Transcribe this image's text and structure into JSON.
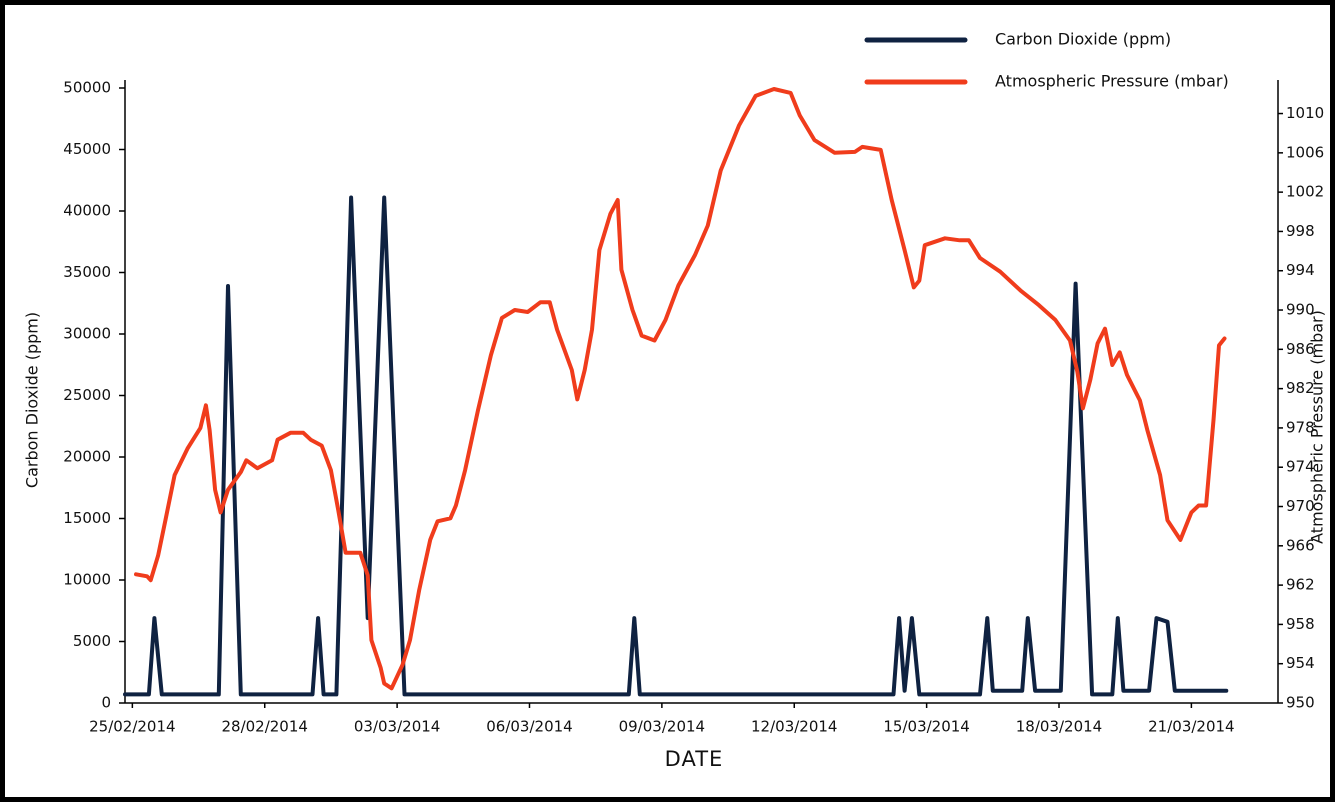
{
  "chart_data": {
    "type": "line",
    "x_label": "DATE",
    "y_label": "Carbon Dioxide (ppm)",
    "y2_label": "Atmospheric Pressure (mbar)",
    "legend": "top-right",
    "grid": false,
    "xlim": [
      "2014-02-24 20:00",
      "2014-03-21 21:00"
    ],
    "xticks": [
      {
        "value": "2014-02-25 00:00",
        "label": "25/02/2014"
      },
      {
        "value": "2014-02-28 00:00",
        "label": "28/02/2014"
      },
      {
        "value": "2014-03-03 00:00",
        "label": "03/03/2014"
      },
      {
        "value": "2014-03-06 00:00",
        "label": "06/03/2014"
      },
      {
        "value": "2014-03-09 00:00",
        "label": "09/03/2014"
      },
      {
        "value": "2014-03-12 00:00",
        "label": "12/03/2014"
      },
      {
        "value": "2014-03-15 00:00",
        "label": "15/03/2014"
      },
      {
        "value": "2014-03-18 00:00",
        "label": "18/03/2014"
      },
      {
        "value": "2014-03-21 00:00",
        "label": "21/03/2014"
      }
    ],
    "ylim": [
      0,
      50000
    ],
    "yticks": [
      0,
      5000,
      10000,
      15000,
      20000,
      25000,
      30000,
      35000,
      40000,
      45000,
      50000
    ],
    "y2lim": [
      950,
      1012.6
    ],
    "y2ticks": [
      950,
      954,
      958,
      962,
      966,
      970,
      974,
      978,
      982,
      986,
      990,
      994,
      998,
      1002,
      1006,
      1010
    ],
    "series": [
      {
        "name": "Carbon Dioxide (ppm)",
        "color": "#0f2241",
        "x": [
          "2014-02-24 20:00",
          "2014-02-25 09:00",
          "2014-02-25 12:00",
          "2014-02-25 16:00",
          "2014-02-26 23:00",
          "2014-02-27 04:00",
          "2014-02-27 11:00",
          "2014-03-01 02:00",
          "2014-03-01 05:00",
          "2014-03-01 08:00",
          "2014-03-01 15:00",
          "2014-03-01 23:00",
          "2014-03-02 08:00",
          "2014-03-02 17:00",
          "2014-03-03 04:00",
          "2014-03-08 06:00",
          "2014-03-08 09:00",
          "2014-03-08 12:00",
          "2014-03-14 06:00",
          "2014-03-14 09:00",
          "2014-03-14 12:00",
          "2014-03-14 16:00",
          "2014-03-14 20:00",
          "2014-03-16 05:00",
          "2014-03-16 09:00",
          "2014-03-16 12:00",
          "2014-03-17 04:00",
          "2014-03-17 07:00",
          "2014-03-17 11:00",
          "2014-03-18 01:00",
          "2014-03-18 09:00",
          "2014-03-18 18:00",
          "2014-03-19 05:00",
          "2014-03-19 08:00",
          "2014-03-19 11:00",
          "2014-03-20 01:00",
          "2014-03-20 05:00",
          "2014-03-20 11:00",
          "2014-03-20 15:00",
          "2014-03-21 19:00"
        ],
        "values": [
          700,
          700,
          6900,
          700,
          700,
          33900,
          700,
          700,
          6900,
          700,
          700,
          41100,
          6900,
          41100,
          700,
          700,
          6900,
          700,
          700,
          6900,
          1000,
          6900,
          700,
          700,
          6900,
          1000,
          1000,
          6900,
          1000,
          1000,
          34100,
          700,
          700,
          6900,
          1000,
          1000,
          6900,
          6600,
          1000,
          1000
        ]
      },
      {
        "name": "Atmospheric Pressure (mbar)",
        "color": "#f03c1c",
        "axis": "y2",
        "x": [
          "2014-02-25 02:00",
          "2014-02-25 08:00",
          "2014-02-25 10:00",
          "2014-02-25 14:00",
          "2014-02-25 18:00",
          "2014-02-25 23:00",
          "2014-02-26 06:00",
          "2014-02-26 13:00",
          "2014-02-26 16:00",
          "2014-02-26 18:00",
          "2014-02-26 21:00",
          "2014-02-27 00:00",
          "2014-02-27 04:00",
          "2014-02-27 11:00",
          "2014-02-27 14:00",
          "2014-02-27 20:00",
          "2014-02-28 04:00",
          "2014-02-28 07:00",
          "2014-02-28 14:00",
          "2014-02-28 21:00",
          "2014-03-01 01:00",
          "2014-03-01 07:00",
          "2014-03-01 12:00",
          "2014-03-01 16:00",
          "2014-03-01 20:00",
          "2014-03-02 04:00",
          "2014-03-02 08:00",
          "2014-03-02 10:00",
          "2014-03-02 15:00",
          "2014-03-02 17:00",
          "2014-03-02 21:00",
          "2014-03-03 03:00",
          "2014-03-03 07:00",
          "2014-03-03 12:00",
          "2014-03-03 18:00",
          "2014-03-03 22:00",
          "2014-03-04 05:00",
          "2014-03-04 08:00",
          "2014-03-04 13:00",
          "2014-03-04 20:00",
          "2014-03-05 03:00",
          "2014-03-05 09:00",
          "2014-03-05 16:00",
          "2014-03-05 23:00",
          "2014-03-06 06:00",
          "2014-03-06 11:00",
          "2014-03-06 15:00",
          "2014-03-06 23:00",
          "2014-03-07 02:00",
          "2014-03-07 06:00",
          "2014-03-07 10:00",
          "2014-03-07 14:00",
          "2014-03-07 20:00",
          "2014-03-08 00:00",
          "2014-03-08 02:00",
          "2014-03-08 08:00",
          "2014-03-08 13:00",
          "2014-03-08 20:00",
          "2014-03-09 02:00",
          "2014-03-09 09:00",
          "2014-03-09 18:00",
          "2014-03-10 01:00",
          "2014-03-10 08:00",
          "2014-03-10 18:00",
          "2014-03-11 03:00",
          "2014-03-11 13:00",
          "2014-03-11 22:00",
          "2014-03-12 03:00",
          "2014-03-12 11:00",
          "2014-03-12 22:00",
          "2014-03-13 09:00",
          "2014-03-13 13:00",
          "2014-03-13 23:00",
          "2014-03-14 05:00",
          "2014-03-14 12:00",
          "2014-03-14 17:00",
          "2014-03-14 20:00",
          "2014-03-14 23:00",
          "2014-03-15 10:00",
          "2014-03-15 18:00",
          "2014-03-15 23:00",
          "2014-03-16 05:00",
          "2014-03-16 16:00",
          "2014-03-17 03:00",
          "2014-03-17 13:00",
          "2014-03-17 22:00",
          "2014-03-18 06:00",
          "2014-03-18 10:00",
          "2014-03-18 13:00",
          "2014-03-18 17:00",
          "2014-03-18 21:00",
          "2014-03-19 01:00",
          "2014-03-19 05:00",
          "2014-03-19 09:00",
          "2014-03-19 13:00",
          "2014-03-19 20:00",
          "2014-03-20 00:00",
          "2014-03-20 07:00",
          "2014-03-20 11:00",
          "2014-03-20 18:00",
          "2014-03-21 00:00",
          "2014-03-21 04:00",
          "2014-03-21 08:00",
          "2014-03-21 12:00",
          "2014-03-21 15:00",
          "2014-03-21 18:00"
        ],
        "values": [
          963.1,
          962.9,
          962.5,
          965.0,
          968.6,
          973.2,
          975.9,
          978.0,
          980.3,
          977.8,
          971.7,
          969.4,
          971.7,
          973.5,
          974.7,
          973.9,
          974.7,
          976.8,
          977.5,
          977.5,
          976.8,
          976.2,
          973.7,
          969.6,
          965.3,
          965.3,
          963.0,
          956.4,
          953.6,
          952.0,
          951.5,
          953.9,
          956.4,
          961.5,
          966.6,
          968.5,
          968.8,
          970.1,
          973.7,
          979.8,
          985.4,
          989.2,
          990.0,
          989.8,
          990.8,
          990.8,
          988.0,
          983.9,
          980.9,
          983.9,
          988.0,
          996.1,
          999.8,
          1001.2,
          994.1,
          990.0,
          987.4,
          986.9,
          989.0,
          992.5,
          995.6,
          998.6,
          1004.2,
          1008.8,
          1011.8,
          1012.5,
          1012.1,
          1009.8,
          1007.3,
          1006.0,
          1006.1,
          1006.6,
          1006.3,
          1001.2,
          996.1,
          992.3,
          993.0,
          996.6,
          997.3,
          997.1,
          997.1,
          995.3,
          993.9,
          992.0,
          990.5,
          989.0,
          986.9,
          983.7,
          980.0,
          982.9,
          986.6,
          988.1,
          984.4,
          985.7,
          983.4,
          980.8,
          977.8,
          973.2,
          968.6,
          966.6,
          969.4,
          970.1,
          970.1,
          978.8,
          986.4,
          987.1
        ]
      }
    ]
  }
}
